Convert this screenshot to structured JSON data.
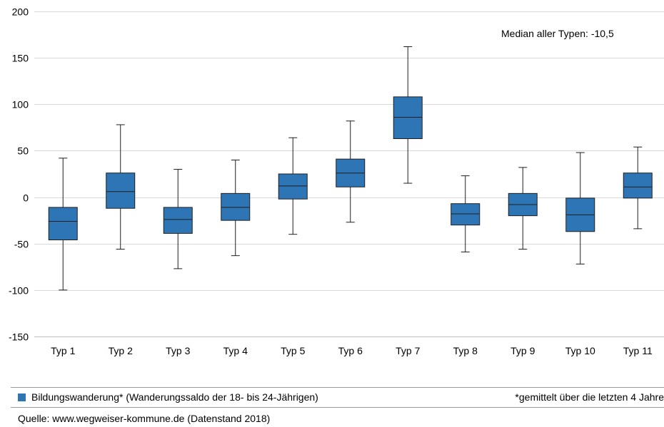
{
  "chart_data": {
    "type": "boxplot",
    "title": "",
    "xlabel": "",
    "ylabel": "",
    "ylim": [
      -150,
      200
    ],
    "yticks": [
      200,
      150,
      100,
      50,
      0,
      -50,
      -100,
      -150
    ],
    "grid": true,
    "annotation": "Median aller Typen: -10,5",
    "colors": {
      "box_fill": "#2e75b6",
      "box_stroke": "#1f1f1f",
      "grid": "#d9d9d9"
    },
    "categories": [
      "Typ 1",
      "Typ 2",
      "Typ 3",
      "Typ 4",
      "Typ 5",
      "Typ 6",
      "Typ 7",
      "Typ 8",
      "Typ 9",
      "Typ 10",
      "Typ 11"
    ],
    "series": [
      {
        "name": "Bildungswanderung* (Wanderungssaldo der 18- bis 24-Jährigen)",
        "boxes": [
          {
            "min": -100,
            "q1": -46,
            "median": -26,
            "q3": -11,
            "max": 42
          },
          {
            "min": -56,
            "q1": -12,
            "median": 6,
            "q3": 26,
            "max": 78
          },
          {
            "min": -77,
            "q1": -39,
            "median": -24,
            "q3": -11,
            "max": 30
          },
          {
            "min": -63,
            "q1": -25,
            "median": -11,
            "q3": 4,
            "max": 40
          },
          {
            "min": -40,
            "q1": -2,
            "median": 12,
            "q3": 25,
            "max": 64
          },
          {
            "min": -27,
            "q1": 11,
            "median": 26,
            "q3": 41,
            "max": 82
          },
          {
            "min": 15,
            "q1": 63,
            "median": 86,
            "q3": 108,
            "max": 162
          },
          {
            "min": -59,
            "q1": -30,
            "median": -18,
            "q3": -7,
            "max": 23
          },
          {
            "min": -56,
            "q1": -20,
            "median": -8,
            "q3": 4,
            "max": 32
          },
          {
            "min": -72,
            "q1": -37,
            "median": -19,
            "q3": -1,
            "max": 48
          },
          {
            "min": -34,
            "q1": -1,
            "median": 11,
            "q3": 26,
            "max": 54
          }
        ]
      }
    ]
  },
  "legend": {
    "label": "Bildungswanderung* (Wanderungssaldo der 18- bis 24-Jährigen)",
    "note": "*gemittelt über die letzten 4 Jahre"
  },
  "source": "Quelle: www.wegweiser-kommune.de (Datenstand 2018)"
}
